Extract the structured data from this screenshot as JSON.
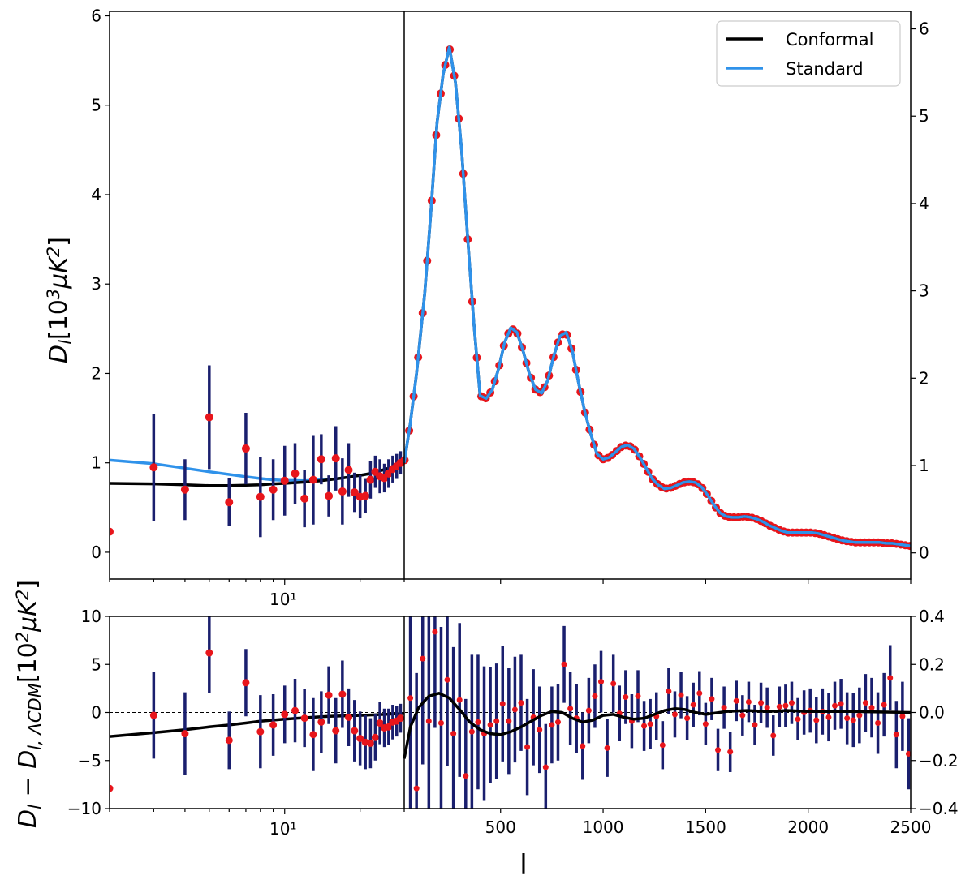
{
  "chart_data": [
    {
      "panel": "top",
      "type": "line",
      "ylabel": "D_l[10^3 μK^2]",
      "left_ylim": [
        -0.3,
        6.05
      ],
      "left_yticks": [
        "0",
        "1",
        "2",
        "3",
        "4",
        "5",
        "6"
      ],
      "right_ylim": [
        -0.3,
        6.2
      ],
      "right_yticks": [
        "0",
        "1",
        "2",
        "3",
        "4",
        "5",
        "6"
      ],
      "xlow": {
        "scale": "log",
        "range": [
          2,
          30
        ],
        "tick_label": "10¹",
        "tick_value": 10
      },
      "xhigh": {
        "scale": "linear",
        "range": [
          30,
          2500
        ],
        "ticks": [
          500,
          1000,
          1500,
          2000,
          2500
        ]
      },
      "legend": {
        "position": "top-right",
        "entries": [
          {
            "label": "Conformal",
            "color": "#000000"
          },
          {
            "label": "Standard",
            "color": "#2f92ea"
          }
        ]
      },
      "series_low": [
        {
          "name": "Standard",
          "color": "#2f92ea",
          "x": [
            2,
            3,
            4,
            5,
            6,
            7,
            8,
            9,
            10,
            12,
            14,
            16,
            18,
            20,
            22,
            24,
            26,
            28,
            30
          ],
          "y": [
            1.03,
            0.99,
            0.94,
            0.9,
            0.87,
            0.845,
            0.825,
            0.81,
            0.805,
            0.8,
            0.81,
            0.82,
            0.84,
            0.86,
            0.88,
            0.91,
            0.94,
            0.97,
            1.0
          ]
        },
        {
          "name": "Conformal",
          "color": "#000000",
          "x": [
            2,
            3,
            4,
            5,
            6,
            7,
            8,
            9,
            10,
            12,
            14,
            16,
            18,
            20,
            22,
            24,
            26,
            28,
            30
          ],
          "y": [
            0.77,
            0.765,
            0.755,
            0.745,
            0.745,
            0.75,
            0.755,
            0.765,
            0.77,
            0.785,
            0.8,
            0.82,
            0.84,
            0.86,
            0.88,
            0.91,
            0.94,
            0.97,
            1.0
          ]
        }
      ],
      "points_low": {
        "x": [
          2,
          3,
          4,
          5,
          6,
          7,
          8,
          9,
          10,
          11,
          12,
          13,
          14,
          15,
          16,
          17,
          18,
          19,
          20,
          21,
          22,
          23,
          24,
          25,
          26,
          27,
          28,
          29
        ],
        "y": [
          0.23,
          0.95,
          0.7,
          1.51,
          0.56,
          1.16,
          0.62,
          0.7,
          0.8,
          0.88,
          0.6,
          0.81,
          1.04,
          0.63,
          1.05,
          0.68,
          0.92,
          0.67,
          0.62,
          0.63,
          0.81,
          0.9,
          0.85,
          0.83,
          0.88,
          0.93,
          0.96,
          1.0
        ],
        "err": [
          0,
          0.6,
          0.34,
          0.58,
          0.27,
          0.4,
          0.45,
          0.34,
          0.39,
          0.34,
          0.32,
          0.5,
          0.28,
          0.23,
          0.36,
          0.37,
          0.3,
          0.22,
          0.24,
          0.19,
          0.21,
          0.18,
          0.19,
          0.16,
          0.16,
          0.15,
          0.14,
          0.13
        ]
      },
      "series_high": [
        {
          "name": "Standard",
          "color": "#2f92ea",
          "x": [
            30,
            60,
            90,
            130,
            160,
            190,
            220,
            250,
            280,
            310,
            340,
            370,
            400,
            430,
            460,
            490,
            520,
            550,
            580,
            610,
            640,
            670,
            700,
            730,
            760,
            790,
            820,
            850,
            880,
            910,
            940,
            970,
            1000,
            1030,
            1060,
            1090,
            1120,
            1150,
            1180,
            1210,
            1240,
            1270,
            1300,
            1330,
            1360,
            1390,
            1420,
            1450,
            1480,
            1510,
            1540,
            1570,
            1600,
            1630,
            1660,
            1690,
            1720,
            1750,
            1780,
            1810,
            1840,
            1870,
            1900,
            1930,
            1960,
            1990,
            2020,
            2050,
            2080,
            2110,
            2140,
            2170,
            2200,
            2230,
            2260,
            2290,
            2320,
            2350,
            2380,
            2410,
            2440,
            2470,
            2500
          ],
          "y": [
            1.0,
            1.45,
            2.0,
            2.9,
            3.8,
            4.8,
            5.35,
            5.65,
            5.25,
            4.5,
            3.5,
            2.55,
            1.75,
            1.72,
            1.82,
            2.05,
            2.35,
            2.51,
            2.46,
            2.25,
            2.0,
            1.82,
            1.78,
            1.92,
            2.2,
            2.42,
            2.46,
            2.25,
            1.9,
            1.58,
            1.32,
            1.1,
            1.04,
            1.06,
            1.12,
            1.18,
            1.2,
            1.16,
            1.06,
            0.94,
            0.82,
            0.75,
            0.71,
            0.72,
            0.75,
            0.78,
            0.79,
            0.78,
            0.73,
            0.64,
            0.53,
            0.44,
            0.4,
            0.39,
            0.39,
            0.4,
            0.39,
            0.37,
            0.34,
            0.3,
            0.27,
            0.24,
            0.22,
            0.22,
            0.22,
            0.22,
            0.22,
            0.21,
            0.19,
            0.17,
            0.15,
            0.13,
            0.12,
            0.11,
            0.11,
            0.11,
            0.11,
            0.11,
            0.1,
            0.1,
            0.09,
            0.08,
            0.07
          ]
        },
        {
          "name": "Conformal",
          "color": "#000000",
          "x": [
            30,
            60,
            90,
            130,
            160,
            190,
            220,
            250,
            280,
            310,
            340,
            370,
            400,
            430,
            460,
            490,
            520,
            550,
            580,
            610,
            640,
            670,
            700,
            730,
            760,
            790,
            820,
            850,
            880,
            910,
            940,
            970,
            1000,
            1030,
            1060,
            1090,
            1120,
            1150,
            1180,
            1210,
            1240,
            1270,
            1300,
            1330,
            1360,
            1390,
            1420,
            1450,
            1480,
            1510,
            1540,
            1570,
            1600,
            1630,
            1660,
            1690,
            1720,
            1750,
            1780,
            1810,
            1840,
            1870,
            1900,
            1930,
            1960,
            1990,
            2020,
            2050,
            2080,
            2110,
            2140,
            2170,
            2200,
            2230,
            2260,
            2290,
            2320,
            2350,
            2380,
            2410,
            2440,
            2470,
            2500
          ],
          "y": [
            1.0,
            1.45,
            2.0,
            2.9,
            3.8,
            4.8,
            5.35,
            5.65,
            5.25,
            4.5,
            3.5,
            2.55,
            1.75,
            1.72,
            1.82,
            2.05,
            2.35,
            2.51,
            2.46,
            2.25,
            2.0,
            1.82,
            1.78,
            1.92,
            2.2,
            2.42,
            2.46,
            2.25,
            1.9,
            1.58,
            1.32,
            1.1,
            1.04,
            1.06,
            1.12,
            1.18,
            1.2,
            1.16,
            1.06,
            0.94,
            0.82,
            0.75,
            0.71,
            0.72,
            0.75,
            0.78,
            0.79,
            0.78,
            0.73,
            0.64,
            0.53,
            0.44,
            0.4,
            0.39,
            0.39,
            0.4,
            0.39,
            0.37,
            0.34,
            0.3,
            0.27,
            0.24,
            0.22,
            0.22,
            0.22,
            0.22,
            0.22,
            0.21,
            0.19,
            0.17,
            0.15,
            0.13,
            0.12,
            0.11,
            0.11,
            0.11,
            0.11,
            0.11,
            0.1,
            0.1,
            0.09,
            0.08,
            0.07
          ]
        }
      ]
    },
    {
      "panel": "bottom",
      "type": "line",
      "ylabel": "D_l − D_{l,ΛCDM}[10^2 μK^2]",
      "xlabel": "l",
      "left_ylim": [
        -10,
        10
      ],
      "left_yticks": [
        "−10",
        "−5",
        "0",
        "5",
        "10"
      ],
      "right_ylim": [
        -0.4,
        0.4
      ],
      "right_yticks": [
        "−0.4",
        "−0.2",
        "0.0",
        "0.2",
        "0.4"
      ],
      "xlow": {
        "scale": "log",
        "range": [
          2,
          30
        ],
        "tick_label": "10¹",
        "tick_value": 10
      },
      "xhigh": {
        "scale": "linear",
        "range": [
          30,
          2500
        ],
        "ticks": [
          500,
          1000,
          1500,
          2000,
          2500
        ],
        "tick_labels": [
          "500",
          "1000",
          "1500",
          "2000",
          "2500"
        ]
      },
      "zero_line": {
        "style": "dashed",
        "y": 0
      },
      "series_low": {
        "name": "Conformal",
        "color": "#000000",
        "x": [
          2,
          3,
          4,
          5,
          6,
          7,
          8,
          10,
          12,
          15,
          20,
          25,
          30
        ],
        "y": [
          -2.5,
          -2.1,
          -1.8,
          -1.5,
          -1.3,
          -1.1,
          -0.9,
          -0.7,
          -0.55,
          -0.4,
          -0.3,
          -0.2,
          -0.1
        ]
      },
      "points_low": {
        "x": [
          2,
          3,
          4,
          5,
          6,
          7,
          8,
          9,
          10,
          11,
          12,
          13,
          14,
          15,
          16,
          17,
          18,
          19,
          20,
          21,
          22,
          23,
          24,
          25,
          26,
          27,
          28,
          29
        ],
        "y": [
          -7.9,
          -0.3,
          -2.2,
          6.2,
          -2.9,
          3.1,
          -2.0,
          -1.3,
          -0.2,
          0.2,
          -0.6,
          -2.3,
          -1.0,
          1.8,
          -1.9,
          1.9,
          -0.5,
          -1.9,
          -2.7,
          -3.1,
          -3.2,
          -2.6,
          -1.1,
          -1.6,
          -1.5,
          -1.0,
          -0.9,
          -0.6
        ],
        "err": [
          0,
          4.5,
          4.3,
          4.2,
          3.0,
          3.5,
          3.8,
          3.2,
          3.0,
          3.3,
          3.0,
          3.8,
          3.2,
          3.0,
          3.4,
          3.5,
          3.0,
          3.2,
          2.8,
          2.8,
          2.6,
          2.4,
          2.2,
          2.0,
          1.9,
          1.8,
          1.6,
          1.5
        ]
      },
      "series_high": {
        "name": "Conformal",
        "color": "#000000",
        "x": [
          30,
          60,
          100,
          150,
          200,
          250,
          300,
          350,
          400,
          450,
          500,
          550,
          600,
          650,
          700,
          750,
          800,
          850,
          900,
          950,
          1000,
          1050,
          1100,
          1150,
          1200,
          1250,
          1300,
          1350,
          1400,
          1450,
          1500,
          1600,
          1700,
          1800,
          1900,
          2000,
          2200,
          2500
        ],
        "y": [
          -4.8,
          -1.5,
          0.5,
          1.7,
          2.0,
          1.5,
          0.3,
          -1.0,
          -1.8,
          -2.2,
          -2.3,
          -2.0,
          -1.5,
          -0.9,
          -0.3,
          0.1,
          0.0,
          -0.6,
          -1.0,
          -0.8,
          -0.3,
          -0.2,
          -0.5,
          -0.7,
          -0.6,
          -0.2,
          0.2,
          0.4,
          0.3,
          0.0,
          -0.2,
          0.1,
          0.2,
          0.1,
          0.2,
          0.1,
          0.1,
          0.0
        ]
      },
      "points_high": {
        "x": [
          60,
          90,
          120,
          150,
          180,
          210,
          240,
          270,
          300,
          330,
          360,
          390,
          420,
          450,
          480,
          510,
          540,
          570,
          600,
          630,
          660,
          690,
          720,
          750,
          780,
          810,
          840,
          870,
          900,
          930,
          960,
          990,
          1020,
          1050,
          1080,
          1110,
          1140,
          1170,
          1200,
          1230,
          1260,
          1290,
          1320,
          1350,
          1380,
          1410,
          1440,
          1470,
          1500,
          1530,
          1560,
          1590,
          1620,
          1650,
          1680,
          1710,
          1740,
          1770,
          1800,
          1830,
          1860,
          1890,
          1920,
          1950,
          1980,
          2010,
          2040,
          2070,
          2100,
          2130,
          2160,
          2190,
          2220,
          2250,
          2280,
          2310,
          2340,
          2370,
          2400,
          2430,
          2460,
          2490
        ],
        "y": [
          1.5,
          -7.9,
          5.6,
          -0.9,
          8.4,
          -1.1,
          3.4,
          -2.2,
          1.3,
          -6.6,
          -2.0,
          -1.0,
          -2.2,
          -1.3,
          -0.9,
          0.9,
          -0.9,
          0.3,
          1.0,
          -3.6,
          -0.5,
          -1.8,
          -5.7,
          -1.3,
          -1.0,
          5.0,
          0.4,
          -0.6,
          -3.5,
          0.2,
          1.7,
          3.2,
          -3.7,
          3.0,
          -0.1,
          1.6,
          -0.9,
          1.7,
          -1.4,
          -1.2,
          -0.4,
          -3.4,
          2.2,
          -0.2,
          1.8,
          -0.6,
          0.8,
          2.0,
          -1.2,
          1.4,
          -3.9,
          0.5,
          -4.1,
          1.2,
          -0.3,
          1.1,
          -1.3,
          1.0,
          0.5,
          -2.4,
          0.6,
          0.7,
          1.0,
          -0.7,
          0.0,
          0.2,
          -0.8,
          0.1,
          -0.5,
          0.7,
          0.9,
          -0.6,
          -0.8,
          -0.3,
          1.0,
          0.5,
          -1.1,
          0.8,
          3.6,
          -2.3,
          -0.4,
          -4.3
        ],
        "err": [
          12,
          12,
          11,
          11,
          10,
          10,
          9,
          9,
          8,
          8,
          8,
          7,
          7,
          6,
          6,
          6,
          5.5,
          5.5,
          5,
          5,
          5,
          4.5,
          4.5,
          4,
          4,
          4,
          3.8,
          3.6,
          3.5,
          3.4,
          3.3,
          3.2,
          3,
          3,
          2.9,
          2.8,
          2.8,
          2.7,
          2.6,
          2.6,
          2.5,
          2.5,
          2.4,
          2.4,
          2.4,
          2.3,
          2.3,
          2.3,
          2.2,
          2.2,
          2.2,
          2.2,
          2.1,
          2.1,
          2.1,
          2.1,
          2.1,
          2.1,
          2.1,
          2.1,
          2.1,
          2.2,
          2.2,
          2.2,
          2.3,
          2.3,
          2.4,
          2.4,
          2.5,
          2.5,
          2.6,
          2.7,
          2.8,
          2.9,
          3,
          3.1,
          3.2,
          3.3,
          3.4,
          3.5,
          3.6,
          3.7
        ]
      }
    }
  ]
}
